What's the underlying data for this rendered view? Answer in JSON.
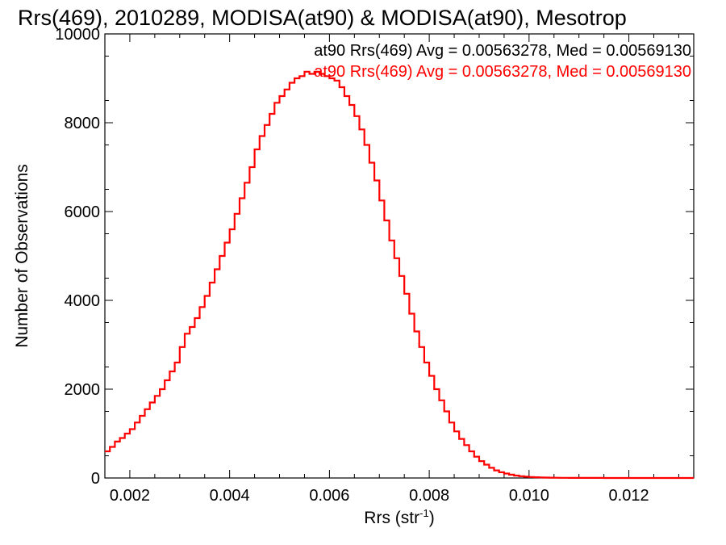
{
  "chart_data": {
    "type": "line",
    "title": "Rrs(469), 2010289, MODISA(at90) & MODISA(at90), Mesotrop",
    "xlabel": "Rrs (str",
    "xlabel_sup": "-1",
    "xlabel_end": ")",
    "ylabel": "Number of Observations",
    "xlim": [
      0.0015,
      0.0133
    ],
    "ylim": [
      0,
      10000
    ],
    "x_ticks": [
      "0.002",
      "0.004",
      "0.006",
      "0.008",
      "0.010",
      "0.012"
    ],
    "x_tick_values": [
      0.002,
      0.004,
      0.006,
      0.008,
      0.01,
      0.012
    ],
    "y_ticks": [
      "0",
      "2000",
      "4000",
      "6000",
      "8000",
      "10000"
    ],
    "y_tick_values": [
      0,
      2000,
      4000,
      6000,
      8000,
      10000
    ],
    "legend": [
      {
        "text": "at90 Rrs(469) Avg = 0.00563278, Med = 0.00569130",
        "color": "#000000"
      },
      {
        "text": "at90 Rrs(469) Avg = 0.00563278, Med = 0.00569130",
        "color": "#ff0000"
      }
    ],
    "series": [
      {
        "color": "#ff0000",
        "step": true,
        "x": [
          0.0015,
          0.0016,
          0.0017,
          0.0018,
          0.0019,
          0.002,
          0.0021,
          0.0022,
          0.0023,
          0.0024,
          0.0025,
          0.0026,
          0.0027,
          0.0028,
          0.0029,
          0.003,
          0.0031,
          0.0032,
          0.0033,
          0.0034,
          0.0035,
          0.0036,
          0.0037,
          0.0038,
          0.0039,
          0.004,
          0.0041,
          0.0042,
          0.0043,
          0.0044,
          0.0045,
          0.0046,
          0.0047,
          0.0048,
          0.0049,
          0.005,
          0.0051,
          0.0052,
          0.0053,
          0.0054,
          0.0055,
          0.0056,
          0.0057,
          0.0058,
          0.0059,
          0.006,
          0.0061,
          0.0062,
          0.0063,
          0.0064,
          0.0065,
          0.0066,
          0.0067,
          0.0068,
          0.0069,
          0.007,
          0.0071,
          0.0072,
          0.0073,
          0.0074,
          0.0075,
          0.0076,
          0.0077,
          0.0078,
          0.0079,
          0.008,
          0.0081,
          0.0082,
          0.0083,
          0.0084,
          0.0085,
          0.0086,
          0.0087,
          0.0088,
          0.0089,
          0.009,
          0.0091,
          0.0092,
          0.0093,
          0.0094,
          0.0095,
          0.0096,
          0.0097,
          0.0098,
          0.0099,
          0.01,
          0.0101,
          0.0102,
          0.0103,
          0.0104,
          0.0105,
          0.0106,
          0.0107,
          0.0108,
          0.0109,
          0.011,
          0.0111,
          0.0112,
          0.0113,
          0.0114,
          0.0115,
          0.0116,
          0.0117,
          0.0118,
          0.0119,
          0.012,
          0.0121,
          0.0122,
          0.0123,
          0.0124,
          0.0125,
          0.0126,
          0.0127,
          0.0128,
          0.0129,
          0.013,
          0.0131,
          0.0132,
          0.0133
        ],
        "y": [
          600,
          700,
          820,
          900,
          1000,
          1100,
          1250,
          1400,
          1550,
          1700,
          1850,
          2000,
          2200,
          2400,
          2600,
          2950,
          3250,
          3400,
          3600,
          3850,
          4100,
          4400,
          4700,
          5000,
          5300,
          5600,
          5950,
          6300,
          6650,
          7000,
          7400,
          7700,
          7950,
          8200,
          8450,
          8600,
          8750,
          8900,
          9000,
          9050,
          9150,
          9100,
          9150,
          9100,
          9050,
          9000,
          8950,
          8800,
          8600,
          8400,
          8150,
          7850,
          7500,
          7100,
          6700,
          6250,
          5800,
          5350,
          4950,
          4550,
          4150,
          3700,
          3300,
          2950,
          2600,
          2300,
          2000,
          1750,
          1500,
          1250,
          1050,
          880,
          740,
          600,
          480,
          380,
          300,
          230,
          170,
          130,
          100,
          75,
          55,
          40,
          30,
          22,
          16,
          12,
          9,
          7,
          5,
          4,
          3,
          2,
          2,
          1,
          1,
          1,
          1,
          1,
          0,
          0,
          0,
          0,
          0,
          0,
          0,
          0,
          0,
          0,
          0,
          0,
          0,
          0,
          0,
          0,
          0,
          0,
          0
        ]
      }
    ]
  }
}
